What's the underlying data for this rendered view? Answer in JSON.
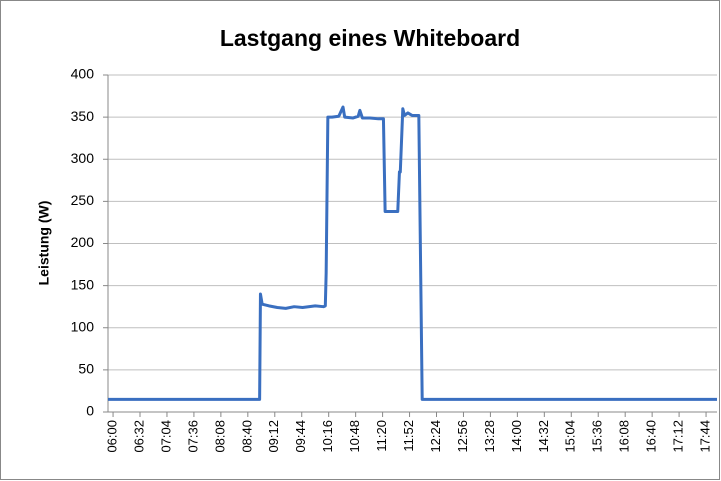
{
  "chart_data": {
    "type": "line",
    "title": "Lastgang eines Whiteboard",
    "y_label": "Leistung (W)",
    "x": [
      "05:54",
      "08:52",
      "08:54",
      "08:55",
      "08:57",
      "09:05",
      "09:15",
      "09:25",
      "09:35",
      "09:45",
      "10:00",
      "10:10",
      "10:12",
      "10:13",
      "10:15",
      "10:20",
      "10:28",
      "10:33",
      "10:35",
      "10:45",
      "10:51",
      "10:53",
      "10:56",
      "11:05",
      "11:15",
      "11:21",
      "11:23",
      "11:30",
      "11:38",
      "11:40",
      "11:41",
      "11:44",
      "11:46",
      "11:50",
      "11:55",
      "12:03",
      "12:07",
      "13:00",
      "14:00",
      "15:00",
      "16:00",
      "17:00",
      "17:57"
    ],
    "series": [
      {
        "name": "Leistung",
        "color": "#3a6fc0",
        "values": [
          15,
          15,
          15,
          140,
          128,
          126,
          124,
          123,
          125,
          124,
          126,
          125,
          126,
          165,
          350,
          350,
          351,
          362,
          350,
          349,
          351,
          358,
          349,
          349,
          348,
          348,
          238,
          238,
          238,
          285,
          285,
          360,
          352,
          355,
          352,
          352,
          15,
          15,
          15,
          15,
          15,
          15,
          15
        ]
      }
    ],
    "xlim": [
      "05:54",
      "17:57"
    ],
    "xticks": [
      "06:00",
      "06:32",
      "07:04",
      "07:36",
      "08:08",
      "08:40",
      "09:12",
      "09:44",
      "10:16",
      "10:48",
      "11:20",
      "11:52",
      "12:24",
      "12:56",
      "13:28",
      "14:00",
      "14:32",
      "15:04",
      "15:36",
      "16:08",
      "16:40",
      "17:12",
      "17:44"
    ],
    "ylim": [
      0,
      400
    ],
    "yticks": [
      0,
      50,
      100,
      150,
      200,
      250,
      300,
      350,
      400
    ],
    "grid": true
  }
}
